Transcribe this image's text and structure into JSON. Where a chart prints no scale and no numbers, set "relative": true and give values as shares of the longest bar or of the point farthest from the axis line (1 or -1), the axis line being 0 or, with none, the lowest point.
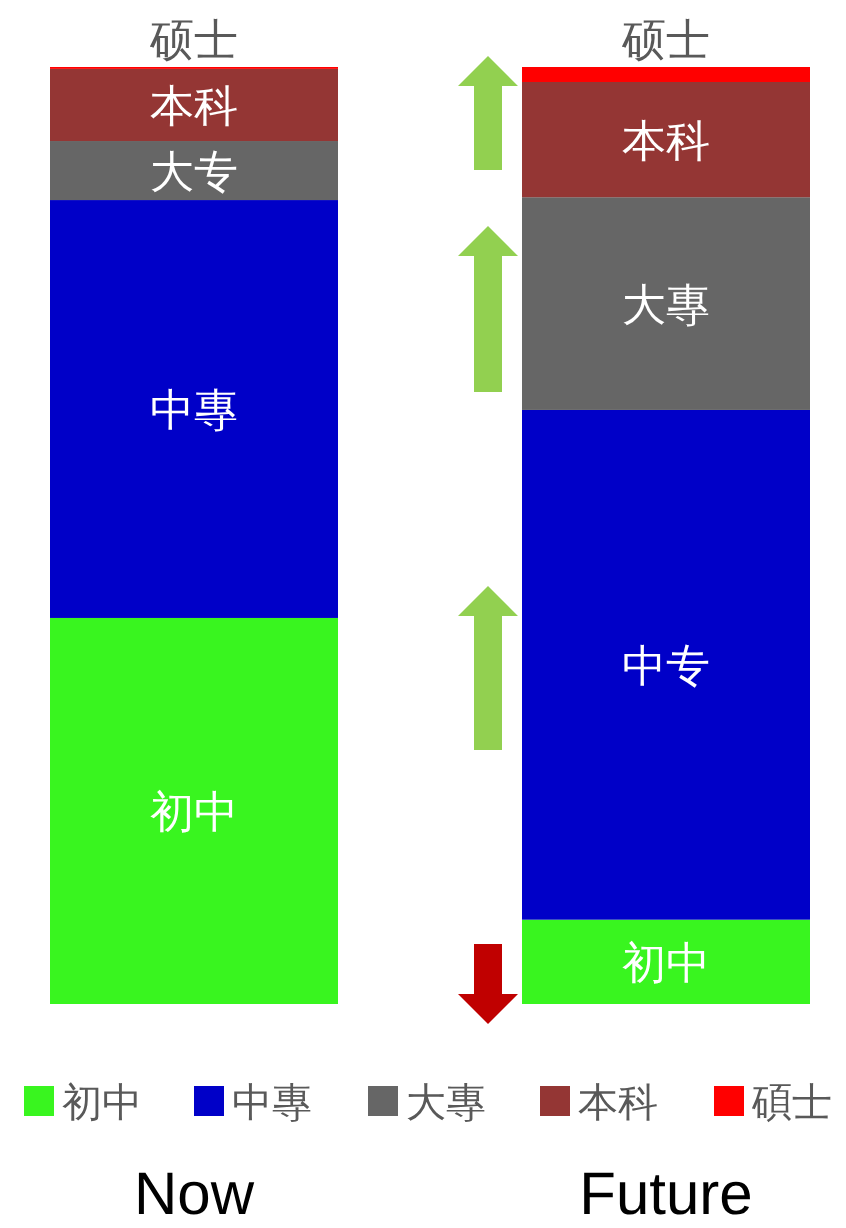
{
  "chart_data": {
    "type": "bar",
    "stacked": true,
    "relative": true,
    "legend": "bottom",
    "categories": [
      "Now",
      "Future"
    ],
    "series": [
      {
        "name": "初中",
        "color": "#39f51f",
        "values": [
          0.412,
          0.09
        ]
      },
      {
        "name": "中專",
        "color": "#0000c8",
        "values": [
          0.446,
          0.544
        ]
      },
      {
        "name": "大專",
        "color": "#666666",
        "values": [
          0.063,
          0.227
        ]
      },
      {
        "name": "本科",
        "color": "#943634",
        "values": [
          0.077,
          0.123
        ]
      },
      {
        "name": "碩士",
        "color": "#ff0000",
        "values": [
          0.002,
          0.016
        ]
      }
    ],
    "annotations": [
      "硕士",
      "本科",
      "大专",
      "中專",
      "初中",
      "硕士",
      "本科",
      "大專",
      "中专",
      "初中"
    ]
  }
}
